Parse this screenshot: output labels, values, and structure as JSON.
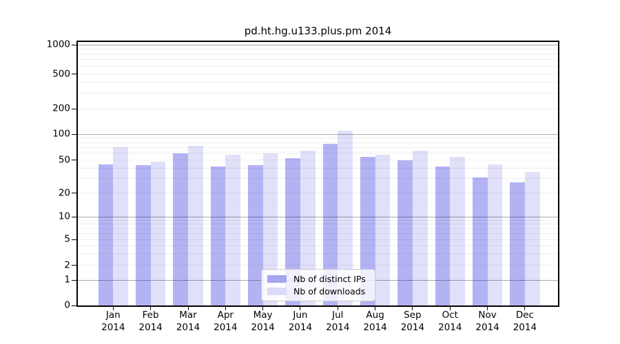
{
  "title": "pd.ht.hg.u133.plus.pm 2014",
  "chart_data": {
    "type": "bar",
    "title": "pd.ht.hg.u133.plus.pm 2014",
    "categories": [
      "Jan 2014",
      "Feb 2014",
      "Mar 2014",
      "Apr 2014",
      "May 2014",
      "Jun 2014",
      "Jul 2014",
      "Aug 2014",
      "Sep 2014",
      "Oct 2014",
      "Nov 2014",
      "Dec 2014"
    ],
    "series": [
      {
        "name": "Nb of distinct IPs",
        "color": "#a6a6f2",
        "values": [
          44,
          43,
          60,
          42,
          43,
          52,
          77,
          54,
          50,
          42,
          31,
          27
        ]
      },
      {
        "name": "Nb of downloads",
        "color": "#dadaf9",
        "values": [
          71,
          48,
          73,
          58,
          60,
          64,
          110,
          58,
          64,
          54,
          44,
          36
        ]
      }
    ],
    "xlabel": "",
    "ylabel": "",
    "yscale": "log1p",
    "ylim": [
      0,
      1100
    ],
    "yticks": [
      0,
      1,
      2,
      5,
      10,
      20,
      50,
      100,
      200,
      500,
      1000
    ],
    "grid": true,
    "legend_position": "lower-center",
    "background": "#ffffff",
    "grid_major_color": "#a8a8a8",
    "grid_minor_color": "#ededed"
  }
}
